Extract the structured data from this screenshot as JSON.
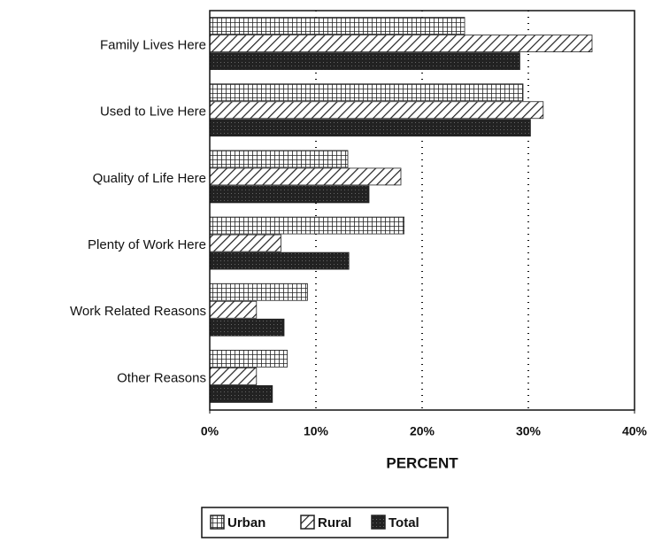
{
  "chart_data": {
    "type": "hbar",
    "categories": [
      "Family Lives Here",
      "Used to Live Here",
      "Quality of Life Here",
      "Plenty of Work Here",
      "Work Related Reasons",
      "Other Reasons"
    ],
    "series": [
      {
        "name": "Urban",
        "pattern": "grid",
        "color": "#222222",
        "values": [
          24,
          29.5,
          13,
          18.3,
          9.2,
          7.3
        ]
      },
      {
        "name": "Rural",
        "pattern": "hatch",
        "color": "#222222",
        "values": [
          36,
          31.4,
          18,
          6.7,
          4.4,
          4.4
        ]
      },
      {
        "name": "Total",
        "pattern": "solid",
        "color": "#222222",
        "values": [
          29.2,
          30.2,
          15,
          13.1,
          7,
          5.9
        ]
      }
    ],
    "xlabel": "PERCENT",
    "xlim": [
      0,
      40
    ],
    "xticks": [
      {
        "value": 0,
        "label": "0%"
      },
      {
        "value": 10,
        "label": "10%"
      },
      {
        "value": 20,
        "label": "20%"
      },
      {
        "value": 30,
        "label": "30%"
      },
      {
        "value": 40,
        "label": "40%"
      }
    ],
    "grid": true
  }
}
